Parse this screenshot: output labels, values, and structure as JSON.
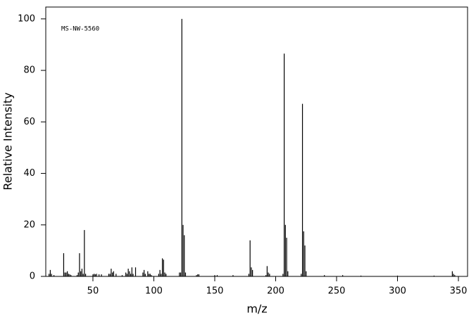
{
  "chart_data": {
    "type": "stem",
    "annotation": "MS-NW-5560",
    "xlabel": "m/z",
    "ylabel": "Relative Intensity",
    "color": "#000000",
    "x": [
      14,
      15,
      16,
      18,
      26,
      27,
      28,
      29,
      30,
      31,
      32,
      37,
      38,
      39,
      40,
      41,
      42,
      43,
      44,
      50,
      51,
      52,
      53,
      55,
      57,
      63,
      64,
      65,
      66,
      67,
      69,
      74,
      77,
      78,
      79,
      80,
      81,
      82,
      83,
      85,
      91,
      92,
      93,
      95,
      96,
      97,
      98,
      104,
      105,
      106,
      107,
      108,
      109,
      110,
      121,
      122,
      123,
      124,
      125,
      126,
      135,
      136,
      137,
      150,
      152,
      165,
      178,
      179,
      180,
      181,
      192,
      193,
      194,
      195,
      206,
      207,
      208,
      209,
      210,
      221,
      222,
      223,
      224,
      225,
      240,
      255,
      270,
      300,
      330,
      345,
      346,
      347
    ],
    "values": [
      1,
      2.5,
      1,
      0.5,
      9,
      1.5,
      1.5,
      2,
      1,
      0.8,
      0.5,
      0.5,
      1.5,
      9,
      2,
      3,
      1,
      18,
      1,
      0.8,
      1,
      0.8,
      1,
      0.8,
      0.8,
      1,
      1,
      3,
      1.5,
      2,
      1,
      0.5,
      1.5,
      1,
      3,
      2,
      1,
      3.5,
      1,
      3.5,
      1.5,
      2.5,
      1,
      2,
      1,
      1,
      0.5,
      1,
      2.5,
      1,
      7,
      6.5,
      1.5,
      1,
      1.5,
      1.5,
      100,
      20,
      16,
      1.5,
      0.5,
      0.8,
      0.8,
      0.5,
      0.5,
      0.5,
      1,
      14,
      3.5,
      2.5,
      0.5,
      4,
      1.5,
      1,
      1,
      86.5,
      20,
      15,
      2,
      1,
      67,
      17.5,
      12,
      2,
      0.5,
      0.5,
      0.3,
      0.3,
      0.3,
      2,
      1,
      0.5
    ],
    "xlim": [
      11.3,
      357.5
    ],
    "xticks": [
      50,
      100,
      150,
      200,
      250,
      300,
      350
    ],
    "ylim": [
      0,
      104.6
    ],
    "yticks": [
      0,
      20,
      40,
      60,
      80,
      100
    ]
  }
}
